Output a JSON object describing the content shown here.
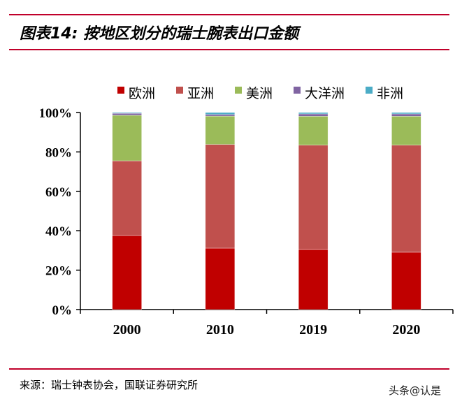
{
  "title": "图表14: 按地区划分的瑞士腕表出口金额",
  "source": "来源：瑞士钟表协会，国联证券研究所",
  "watermark": "头条@认是",
  "chart_data": {
    "type": "bar",
    "stacked": true,
    "categories": [
      "2000",
      "2010",
      "2019",
      "2020"
    ],
    "series": [
      {
        "name": "欧洲",
        "color": "#c00000",
        "values": [
          37.6,
          31.2,
          30.5,
          29.1
        ]
      },
      {
        "name": "亚洲",
        "color": "#c0504d",
        "values": [
          37.9,
          52.6,
          52.9,
          54.3
        ]
      },
      {
        "name": "美洲",
        "color": "#9bbb59",
        "values": [
          23.1,
          14.4,
          14.7,
          14.7
        ]
      },
      {
        "name": "大洋洲",
        "color": "#8064a2",
        "values": [
          1.0,
          0.8,
          1.2,
          1.2
        ]
      },
      {
        "name": "非洲",
        "color": "#4bacc6",
        "values": [
          0.4,
          1.0,
          0.7,
          0.7
        ]
      }
    ],
    "yticks": [
      "0%",
      "20%",
      "40%",
      "60%",
      "80%",
      "100%"
    ],
    "ylim": [
      0,
      100
    ],
    "legend": "top",
    "grid": false
  }
}
